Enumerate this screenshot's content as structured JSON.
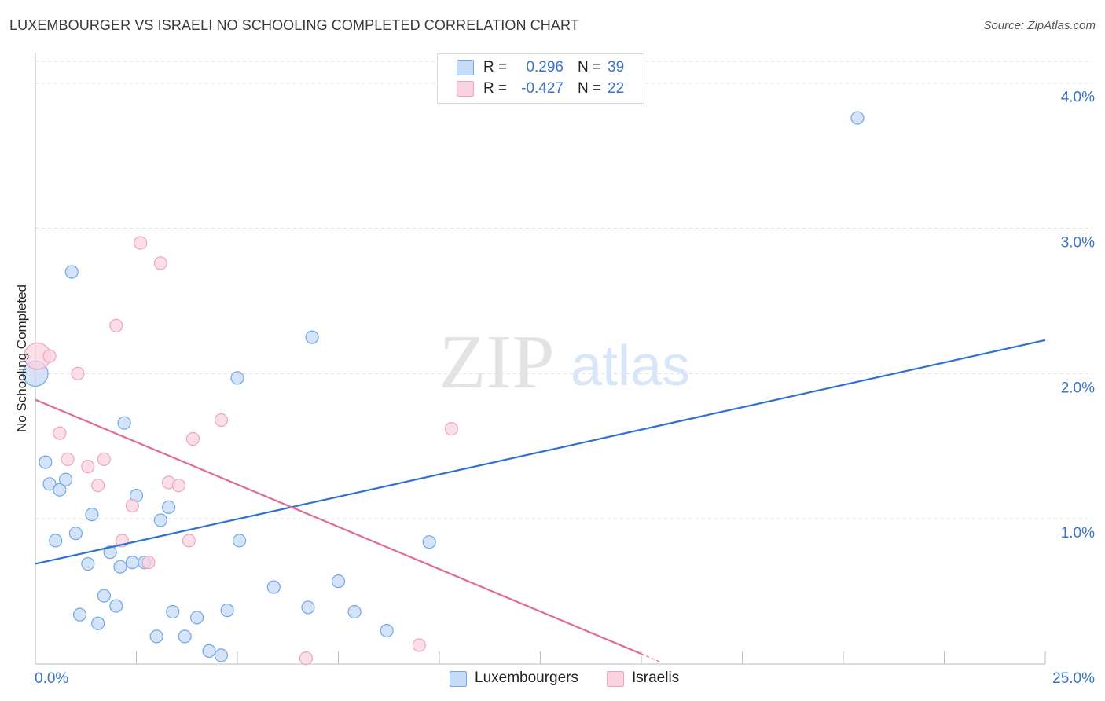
{
  "title": "LUXEMBOURGER VS ISRAELI NO SCHOOLING COMPLETED CORRELATION CHART",
  "source": "Source: ZipAtlas.com",
  "watermark": {
    "zip": "ZIP",
    "atlas": "atlas"
  },
  "colors": {
    "blue": "#6fa8e8",
    "blue_line": "#2f72cf",
    "blue_fill": "#c7daf6",
    "pink": "#f0a4bf",
    "pink_line": "#e06b94",
    "pink_fill": "#f9d3df",
    "value_text": "#3a74c9"
  },
  "stats": [
    {
      "series": "Luxembourgers",
      "r_label": "R =",
      "r_value": "0.296",
      "n_label": "N =",
      "n_value": "39"
    },
    {
      "series": "Israelis",
      "r_label": "R =",
      "r_value": "-0.427",
      "n_label": "N =",
      "n_value": "22"
    }
  ],
  "legend": [
    "Luxembourgers",
    "Israelis"
  ],
  "chart_data": {
    "type": "scatter",
    "title": "LUXEMBOURGER VS ISRAELI NO SCHOOLING COMPLETED CORRELATION CHART",
    "xlabel": "",
    "ylabel": "No Schooling Completed",
    "xlim": [
      0,
      25
    ],
    "ylim": [
      0,
      4.15
    ],
    "x_tick_labels": [
      "0.0%",
      "25.0%"
    ],
    "y_ticks": [
      1.0,
      2.0,
      3.0,
      4.0
    ],
    "y_tick_labels": [
      "1.0%",
      "2.0%",
      "3.0%",
      "4.0%"
    ],
    "x_minor_ticks": [
      2.5,
      5.0,
      7.5,
      10.0,
      12.5,
      15.0,
      17.5,
      20.0,
      22.5,
      25.0
    ],
    "grid": true,
    "series": [
      {
        "name": "Luxembourgers",
        "r": 0.296,
        "n": 39,
        "trend": [
          [
            0,
            0.69
          ],
          [
            25,
            2.23
          ]
        ],
        "points": [
          [
            0.0,
            2.0,
            1.5
          ],
          [
            0.25,
            1.39,
            1
          ],
          [
            0.35,
            1.24,
            1
          ],
          [
            0.5,
            0.85,
            1
          ],
          [
            0.6,
            1.2,
            1
          ],
          [
            0.75,
            1.27,
            1
          ],
          [
            0.9,
            2.7,
            1
          ],
          [
            1.0,
            0.9,
            1
          ],
          [
            1.1,
            0.34,
            1
          ],
          [
            1.3,
            0.69,
            1
          ],
          [
            1.4,
            1.03,
            1
          ],
          [
            1.55,
            0.28,
            1
          ],
          [
            1.7,
            0.47,
            1
          ],
          [
            1.85,
            0.77,
            1
          ],
          [
            2.0,
            0.4,
            1
          ],
          [
            2.1,
            0.67,
            1
          ],
          [
            2.2,
            1.66,
            1
          ],
          [
            2.4,
            0.7,
            1
          ],
          [
            2.5,
            1.16,
            1
          ],
          [
            2.7,
            0.7,
            1
          ],
          [
            3.0,
            0.19,
            1
          ],
          [
            3.1,
            0.99,
            1
          ],
          [
            3.3,
            1.08,
            1
          ],
          [
            3.4,
            0.36,
            1
          ],
          [
            3.7,
            0.19,
            1
          ],
          [
            4.0,
            0.32,
            1
          ],
          [
            4.3,
            0.09,
            1
          ],
          [
            4.6,
            0.06,
            1
          ],
          [
            4.75,
            0.37,
            1
          ],
          [
            5.0,
            1.97,
            1
          ],
          [
            5.05,
            0.85,
            1
          ],
          [
            5.9,
            0.53,
            1
          ],
          [
            6.75,
            0.39,
            1
          ],
          [
            6.85,
            2.25,
            1
          ],
          [
            7.5,
            0.57,
            1
          ],
          [
            7.9,
            0.36,
            1
          ],
          [
            8.7,
            0.23,
            1
          ],
          [
            9.75,
            0.84,
            1
          ],
          [
            20.35,
            3.76,
            1
          ]
        ]
      },
      {
        "name": "Israelis",
        "r": -0.427,
        "n": 22,
        "trend": [
          [
            0,
            1.82
          ],
          [
            15.0,
            0.07
          ]
        ],
        "trend_dashed": [
          [
            15.0,
            0.07
          ],
          [
            15.5,
            0.01
          ]
        ],
        "points": [
          [
            0.05,
            2.12,
            1.6
          ],
          [
            0.35,
            2.12,
            1
          ],
          [
            0.6,
            1.59,
            1
          ],
          [
            0.8,
            1.41,
            1
          ],
          [
            1.05,
            2.0,
            1
          ],
          [
            1.3,
            1.36,
            1
          ],
          [
            1.55,
            1.23,
            1
          ],
          [
            1.7,
            1.41,
            1
          ],
          [
            2.0,
            2.33,
            1
          ],
          [
            2.15,
            0.85,
            1
          ],
          [
            2.4,
            1.09,
            1
          ],
          [
            2.6,
            2.9,
            1
          ],
          [
            2.8,
            0.7,
            1
          ],
          [
            3.1,
            2.76,
            1
          ],
          [
            3.3,
            1.25,
            1
          ],
          [
            3.55,
            1.23,
            1
          ],
          [
            3.8,
            0.85,
            1
          ],
          [
            3.9,
            1.55,
            1
          ],
          [
            4.6,
            1.68,
            1
          ],
          [
            6.7,
            0.04,
            1
          ],
          [
            9.5,
            0.13,
            1
          ],
          [
            10.3,
            1.62,
            1
          ]
        ]
      }
    ]
  }
}
